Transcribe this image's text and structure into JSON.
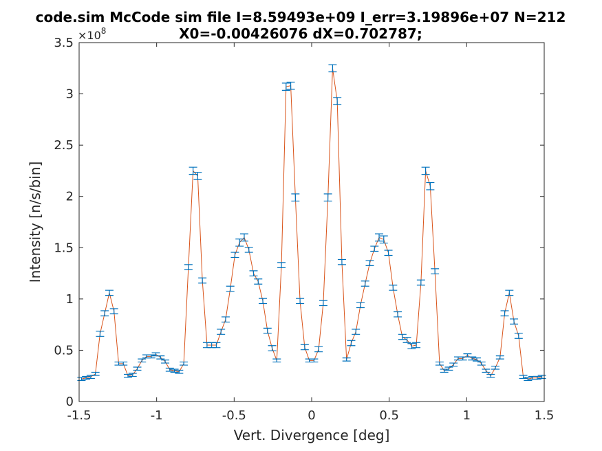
{
  "chart_data": {
    "type": "errorbar",
    "title": [
      "code.sim McCode sim file I=8.59493e+09 I_err=3.19896e+07 N=212",
      "X0=-0.00426076 dX=0.702787;"
    ],
    "xlabel": "Vert. Divergence [deg]",
    "ylabel": "Intensity [n/s/bin]",
    "y_exponent_base": "×10",
    "y_exponent": "8",
    "xlim": [
      -1.5,
      1.5
    ],
    "ylim": [
      0,
      3.5
    ],
    "xticks": [
      -1.5,
      -1,
      -0.5,
      0,
      0.5,
      1,
      1.5
    ],
    "yticks": [
      0,
      0.5,
      1,
      1.5,
      2,
      2.5,
      3,
      3.5
    ],
    "grid": false,
    "line_color": "#d95319",
    "errorbar_color": "#0072bd",
    "x": [
      -1.485,
      -1.455,
      -1.425,
      -1.395,
      -1.365,
      -1.335,
      -1.305,
      -1.275,
      -1.245,
      -1.215,
      -1.185,
      -1.155,
      -1.125,
      -1.095,
      -1.065,
      -1.035,
      -1.005,
      -0.975,
      -0.945,
      -0.915,
      -0.885,
      -0.855,
      -0.825,
      -0.795,
      -0.765,
      -0.735,
      -0.705,
      -0.675,
      -0.645,
      -0.615,
      -0.585,
      -0.555,
      -0.525,
      -0.495,
      -0.465,
      -0.435,
      -0.405,
      -0.375,
      -0.345,
      -0.315,
      -0.285,
      -0.255,
      -0.225,
      -0.195,
      -0.165,
      -0.135,
      -0.105,
      -0.075,
      -0.045,
      -0.015,
      0.015,
      0.045,
      0.075,
      0.105,
      0.135,
      0.165,
      0.195,
      0.225,
      0.255,
      0.285,
      0.315,
      0.345,
      0.375,
      0.405,
      0.435,
      0.465,
      0.495,
      0.525,
      0.555,
      0.585,
      0.615,
      0.645,
      0.675,
      0.705,
      0.735,
      0.765,
      0.795,
      0.825,
      0.855,
      0.885,
      0.915,
      0.945,
      0.975,
      1.005,
      1.035,
      1.065,
      1.095,
      1.125,
      1.155,
      1.185,
      1.215,
      1.245,
      1.275,
      1.305,
      1.335,
      1.365,
      1.395,
      1.425,
      1.455,
      1.485
    ],
    "values": [
      0.22,
      0.23,
      0.24,
      0.27,
      0.66,
      0.86,
      1.06,
      0.88,
      0.37,
      0.37,
      0.25,
      0.26,
      0.32,
      0.4,
      0.44,
      0.44,
      0.46,
      0.43,
      0.39,
      0.31,
      0.3,
      0.29,
      0.37,
      1.31,
      2.25,
      2.2,
      1.18,
      0.55,
      0.55,
      0.55,
      0.68,
      0.8,
      1.1,
      1.43,
      1.55,
      1.6,
      1.48,
      1.25,
      1.17,
      0.98,
      0.69,
      0.52,
      0.4,
      1.33,
      3.07,
      3.08,
      1.99,
      0.98,
      0.53,
      0.4,
      0.4,
      0.51,
      0.96,
      1.99,
      3.25,
      2.93,
      1.36,
      0.41,
      0.57,
      0.68,
      0.94,
      1.15,
      1.35,
      1.49,
      1.6,
      1.58,
      1.45,
      1.11,
      0.85,
      0.63,
      0.6,
      0.54,
      0.55,
      1.16,
      2.25,
      2.1,
      1.27,
      0.37,
      0.3,
      0.32,
      0.36,
      0.42,
      0.42,
      0.45,
      0.42,
      0.41,
      0.37,
      0.3,
      0.25,
      0.33,
      0.43,
      0.86,
      1.06,
      0.78,
      0.64,
      0.24,
      0.22,
      0.23,
      0.23,
      0.24
    ],
    "errors": [
      0.015,
      0.015,
      0.015,
      0.015,
      0.025,
      0.025,
      0.025,
      0.025,
      0.015,
      0.015,
      0.015,
      0.015,
      0.015,
      0.015,
      0.015,
      0.015,
      0.015,
      0.015,
      0.015,
      0.015,
      0.015,
      0.015,
      0.015,
      0.025,
      0.035,
      0.035,
      0.025,
      0.025,
      0.025,
      0.025,
      0.025,
      0.025,
      0.025,
      0.025,
      0.035,
      0.035,
      0.025,
      0.025,
      0.025,
      0.025,
      0.025,
      0.025,
      0.015,
      0.025,
      0.035,
      0.035,
      0.035,
      0.025,
      0.025,
      0.015,
      0.015,
      0.025,
      0.025,
      0.035,
      0.035,
      0.035,
      0.025,
      0.015,
      0.025,
      0.025,
      0.025,
      0.025,
      0.025,
      0.025,
      0.035,
      0.035,
      0.025,
      0.025,
      0.025,
      0.025,
      0.025,
      0.025,
      0.025,
      0.025,
      0.035,
      0.035,
      0.025,
      0.015,
      0.015,
      0.015,
      0.015,
      0.015,
      0.015,
      0.015,
      0.015,
      0.015,
      0.015,
      0.015,
      0.015,
      0.015,
      0.015,
      0.025,
      0.025,
      0.025,
      0.025,
      0.015,
      0.015,
      0.015,
      0.015,
      0.015
    ]
  }
}
